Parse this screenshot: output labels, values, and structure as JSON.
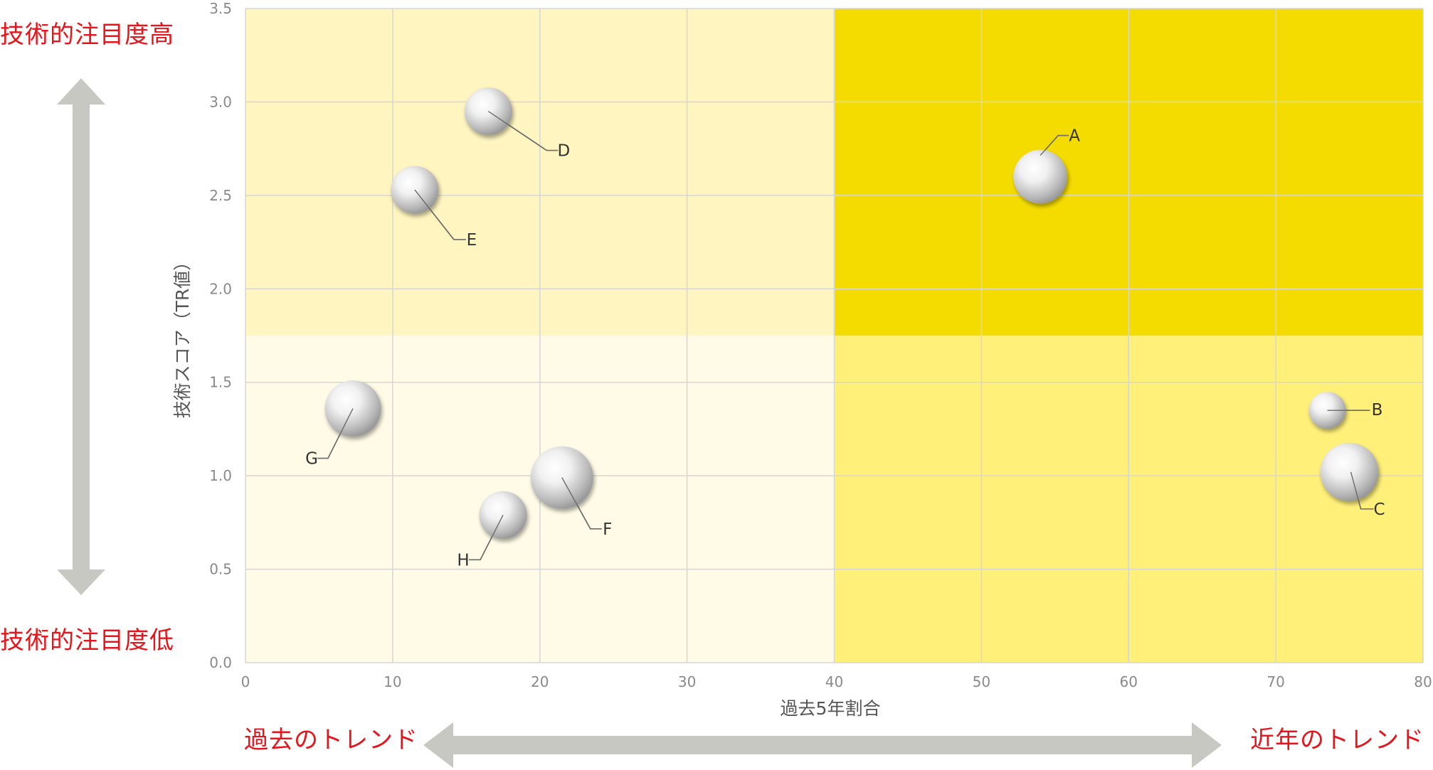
{
  "annotations": {
    "top": "技術的注目度高",
    "bottom": "技術的注目度低",
    "left": "過去のトレンド",
    "right": "近年のトレンド"
  },
  "colors": {
    "accent_red": "#e8141b",
    "arrow_gray": "#c8c8c2",
    "quad_top_left": "#fff5c0",
    "quad_top_right": "#f5dc00",
    "quad_bottom_left": "#fffbe6",
    "quad_bottom_right": "#fff07a"
  },
  "chart_data": {
    "type": "scatter",
    "xlabel": "過去5年割合",
    "ylabel": "技術スコア（TR値）",
    "xlim": [
      0,
      80
    ],
    "ylim": [
      0,
      3.5
    ],
    "xticks": [
      "0",
      "10",
      "20",
      "30",
      "40",
      "50",
      "60",
      "70",
      "80"
    ],
    "yticks": [
      "0.0",
      "0.5",
      "1.0",
      "1.5",
      "2.0",
      "2.5",
      "3.0",
      "3.5"
    ],
    "grid": true,
    "quadrant_split": {
      "x": 40,
      "y": 1.75
    },
    "points": [
      {
        "label": "A",
        "x": 54,
        "y": 2.6,
        "size": 1.0
      },
      {
        "label": "B",
        "x": 73.5,
        "y": 1.35,
        "size": 0.6
      },
      {
        "label": "C",
        "x": 75,
        "y": 1.02,
        "size": 1.1
      },
      {
        "label": "D",
        "x": 16.5,
        "y": 2.95,
        "size": 0.85
      },
      {
        "label": "E",
        "x": 11.5,
        "y": 2.53,
        "size": 0.85
      },
      {
        "label": "F",
        "x": 21.5,
        "y": 0.99,
        "size": 1.2
      },
      {
        "label": "G",
        "x": 7.3,
        "y": 1.36,
        "size": 1.05
      },
      {
        "label": "H",
        "x": 17.5,
        "y": 0.79,
        "size": 0.85
      }
    ]
  }
}
